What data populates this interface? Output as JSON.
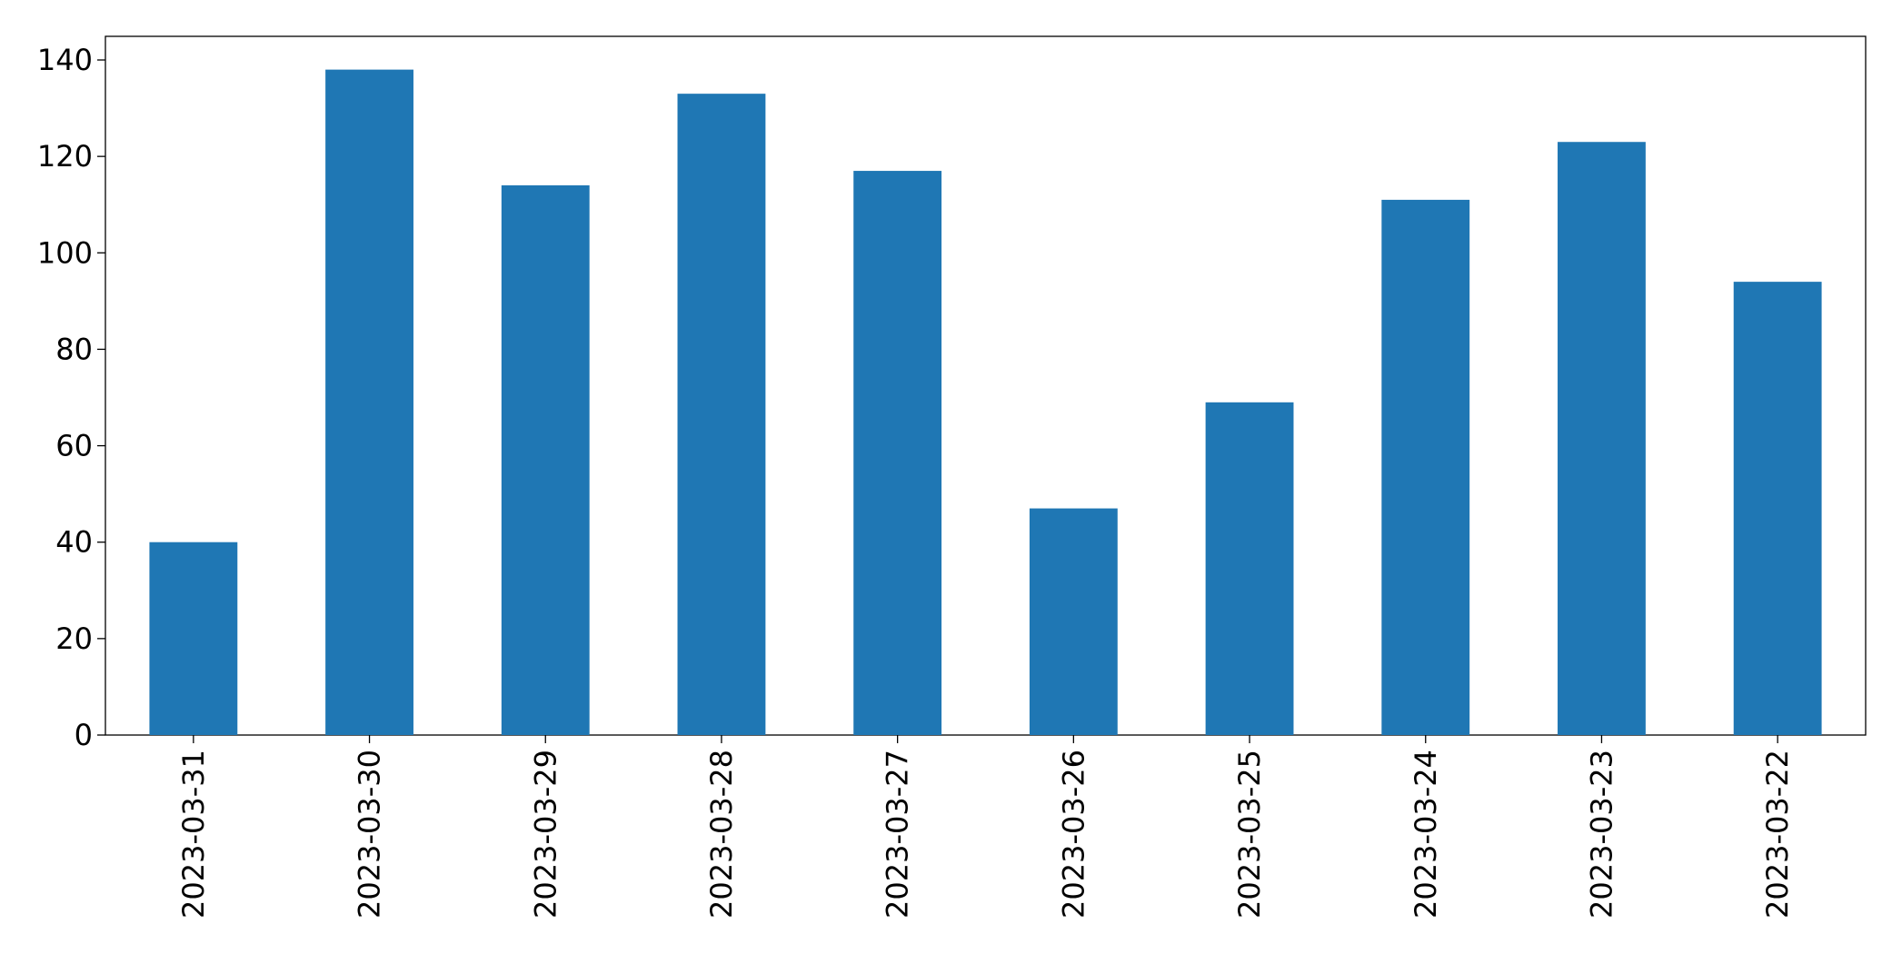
{
  "chart_data": {
    "type": "bar",
    "categories": [
      "2023-03-31",
      "2023-03-30",
      "2023-03-29",
      "2023-03-28",
      "2023-03-27",
      "2023-03-26",
      "2023-03-25",
      "2023-03-24",
      "2023-03-23",
      "2023-03-22"
    ],
    "values": [
      40,
      138,
      114,
      133,
      117,
      47,
      69,
      111,
      123,
      94
    ],
    "color": "#1f77b4",
    "ylim": [
      0,
      144.9
    ],
    "yticks": [
      0,
      20,
      40,
      60,
      80,
      100,
      120,
      140
    ],
    "grid": false
  }
}
